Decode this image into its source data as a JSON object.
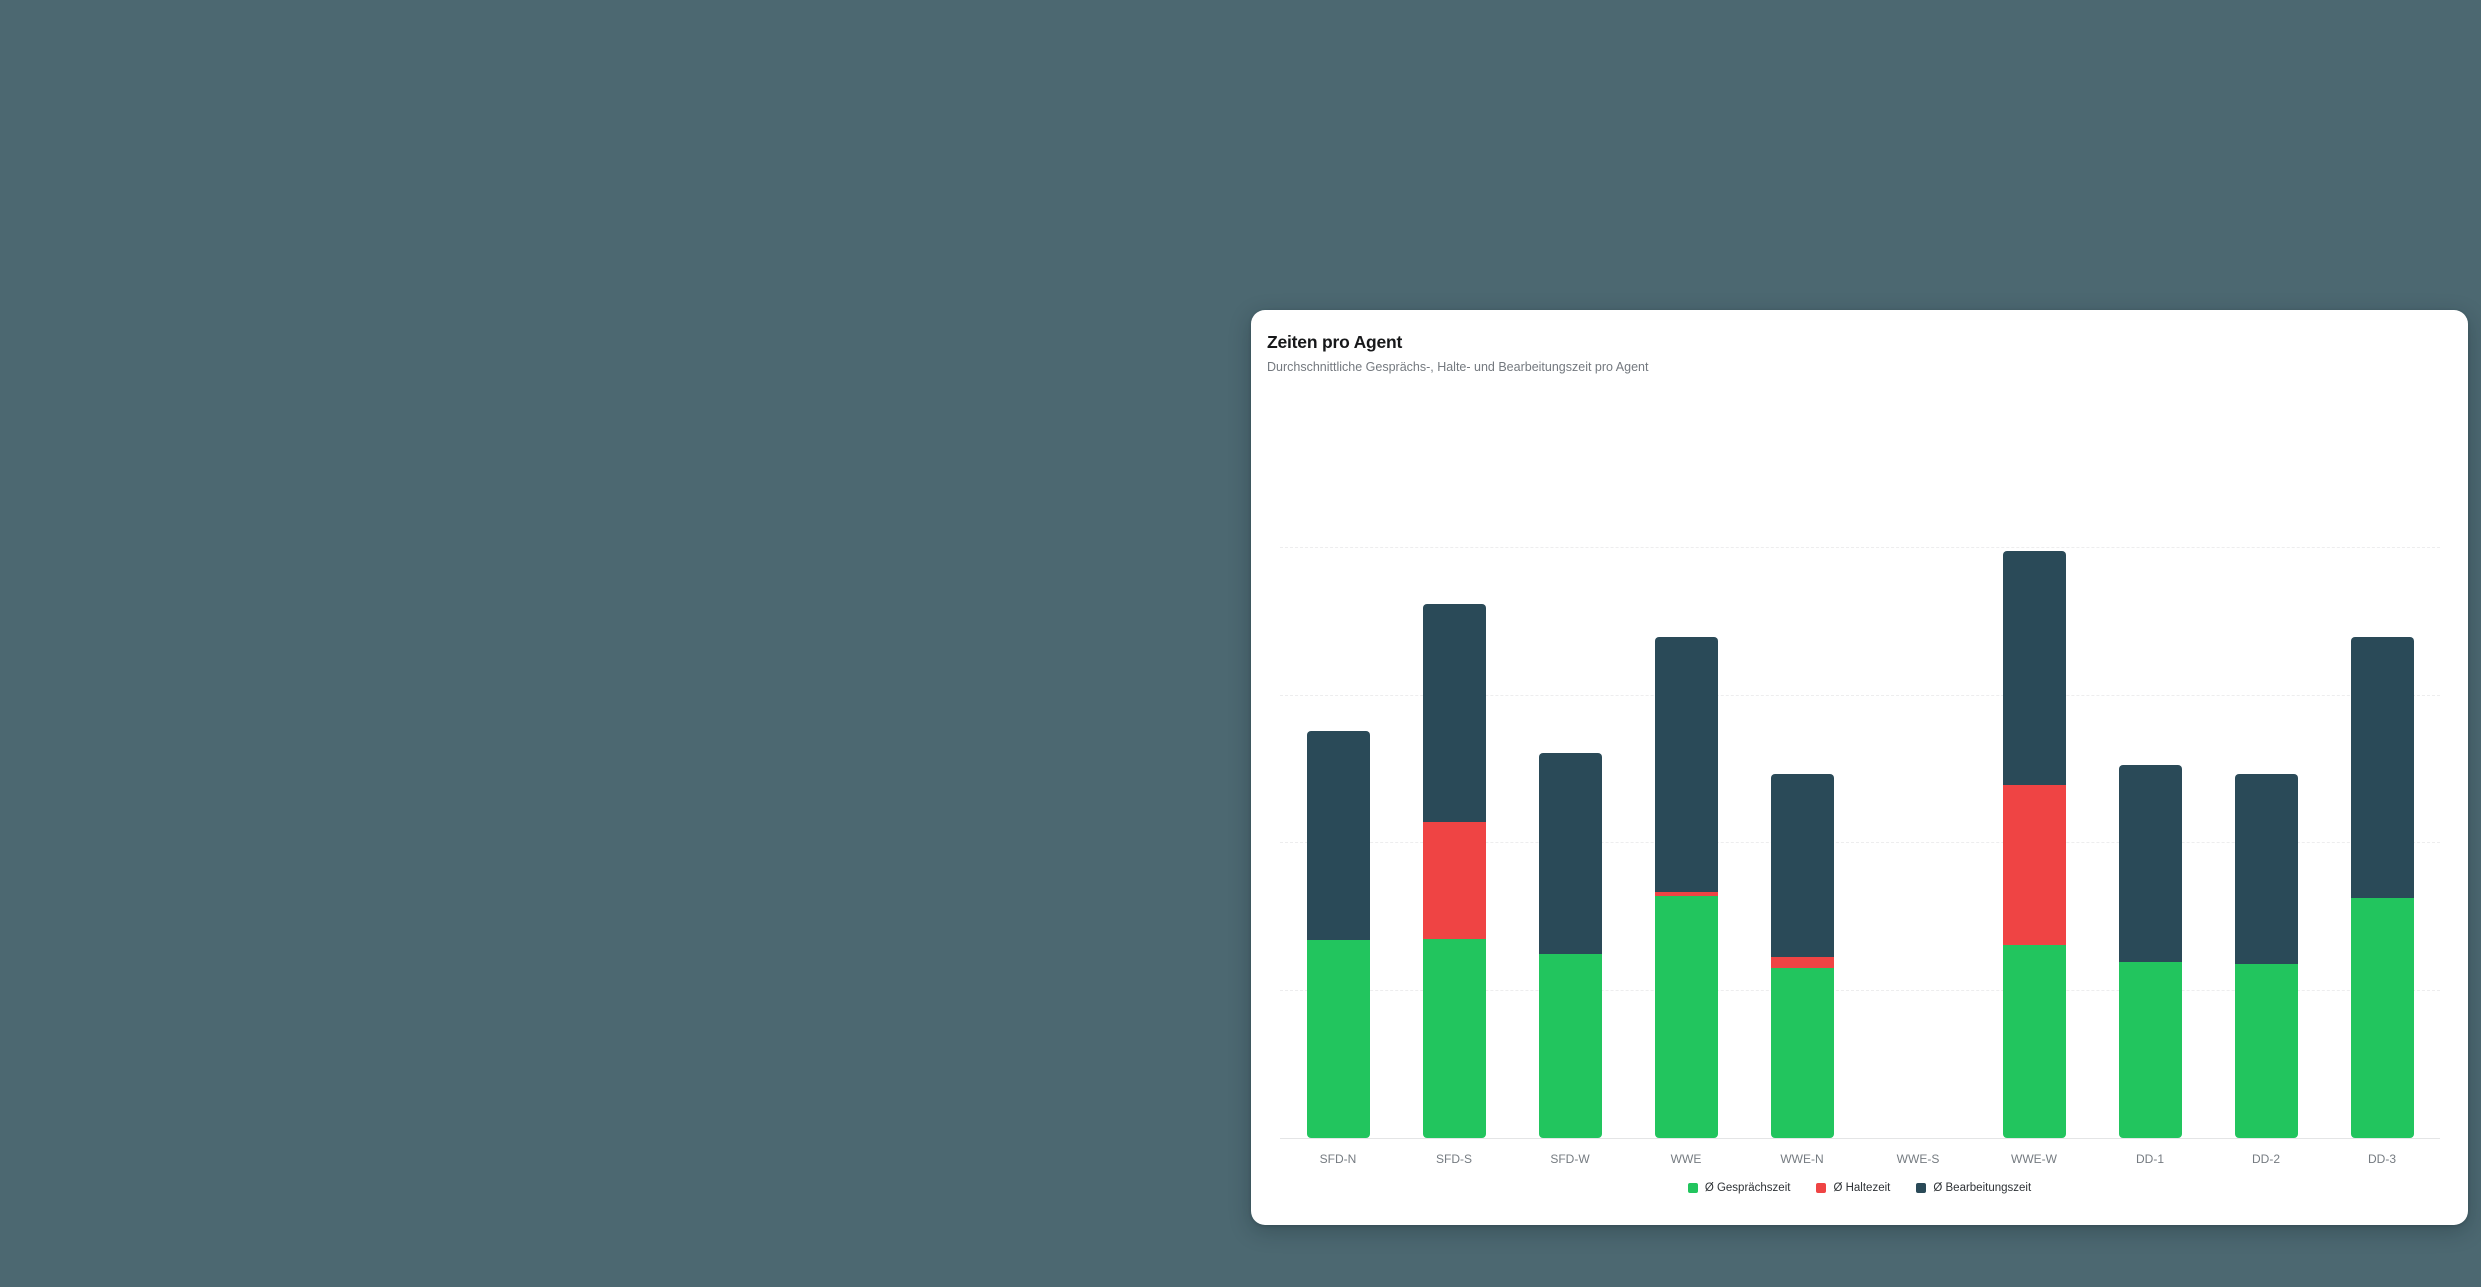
{
  "page": {
    "background_color": "#4c6871",
    "card_color": "#ffffff"
  },
  "card": {
    "title": "Zeiten pro Agent",
    "subtitle": "Durchschnittliche Gesprächs-, Halte- und Bearbeitungszeit pro Agent"
  },
  "chart_data": {
    "type": "bar",
    "stacked": true,
    "title": "Zeiten pro Agent",
    "xlabel": "",
    "ylabel": "",
    "ylim": [
      0,
      400
    ],
    "gridline_values": [
      100,
      200,
      300,
      400
    ],
    "y_tick_labels_visible": false,
    "grid": "horizontal-dashed",
    "legend_position": "bottom",
    "categories": [
      "SFD-N",
      "SFD-S",
      "SFD-W",
      "WWE",
      "WWE-N",
      "WWE-S",
      "WWE-W",
      "DD-1",
      "DD-2",
      "DD-3"
    ],
    "series": [
      {
        "key": "gespraechszeit",
        "name": "Ø Gesprächszeit",
        "color": "#22c55e",
        "values": [
          134,
          135,
          125,
          164,
          115,
          0,
          131,
          119,
          118,
          163
        ]
      },
      {
        "key": "haltezeit",
        "name": "Ø Haltezeit",
        "color": "#ef4444",
        "values": [
          0,
          79,
          0,
          3,
          8,
          0,
          108,
          0,
          0,
          0
        ]
      },
      {
        "key": "bearbeitungszeit",
        "name": "Ø Bearbeitungszeit",
        "color": "#2a4a58",
        "values": [
          142,
          148,
          136,
          173,
          124,
          0,
          159,
          134,
          129,
          177
        ]
      }
    ]
  }
}
